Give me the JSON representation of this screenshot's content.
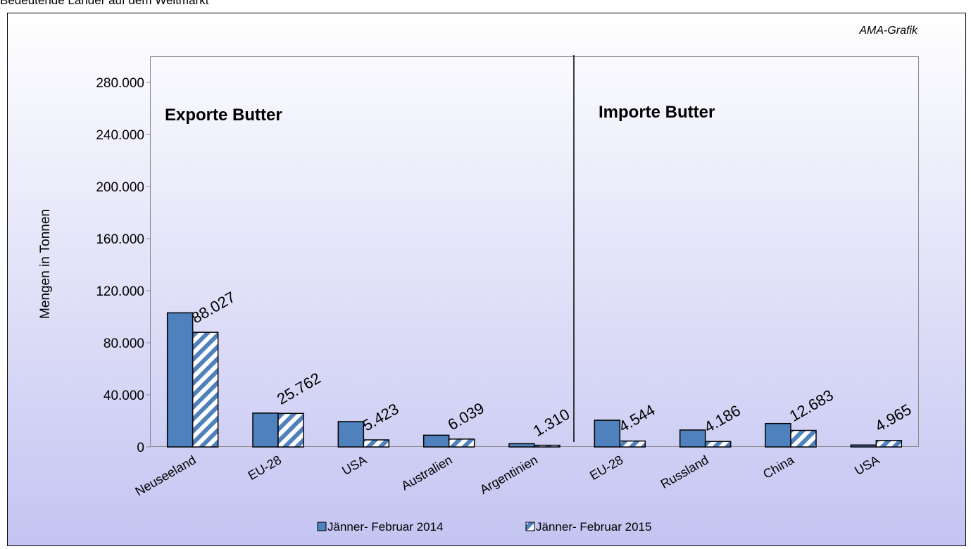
{
  "chart_data": {
    "type": "bar",
    "title": "Bedeutende Länder auf dem Weltmarkt",
    "source": "AMA-Grafik",
    "ylabel": "Mengen in Tonnen",
    "annotations": [
      "Exporte Butter",
      "Importe Butter"
    ],
    "categories": [
      "Neuseeland",
      "EU-28",
      "USA",
      "Australien",
      "Argentinien",
      "EU-28",
      "Russland",
      "China",
      "USA"
    ],
    "series": [
      {
        "name": "Jänner- Februar 2014",
        "color": "#4f81bd",
        "values": [
          103000,
          26000,
          19500,
          9000,
          2500,
          20500,
          13000,
          18000,
          1500
        ]
      },
      {
        "name": "Jänner- Februar 2015",
        "color": "#4f81bd",
        "hatched": true,
        "values": [
          88027,
          25762,
          5423,
          6039,
          1310,
          4544,
          4186,
          12683,
          4965
        ],
        "value_labels": [
          "88.027",
          "25.762",
          "5.423",
          "6.039",
          "1.310",
          "4.544",
          "4.186",
          "12.683",
          "4.965"
        ]
      }
    ],
    "ylim": [
      0,
      300000
    ],
    "yticks": [
      0,
      {
        "value": 40000,
        "label": "40.000"
      },
      {
        "value": 80000,
        "label": "80.000"
      },
      {
        "value": 120000,
        "label": "120.000"
      },
      {
        "value": 160000,
        "label": "160.000"
      },
      {
        "value": 200000,
        "label": "200.000"
      },
      {
        "value": 240000,
        "label": "240.000"
      },
      {
        "value": 280000,
        "label": "280.000"
      }
    ],
    "legend": "bottom"
  }
}
